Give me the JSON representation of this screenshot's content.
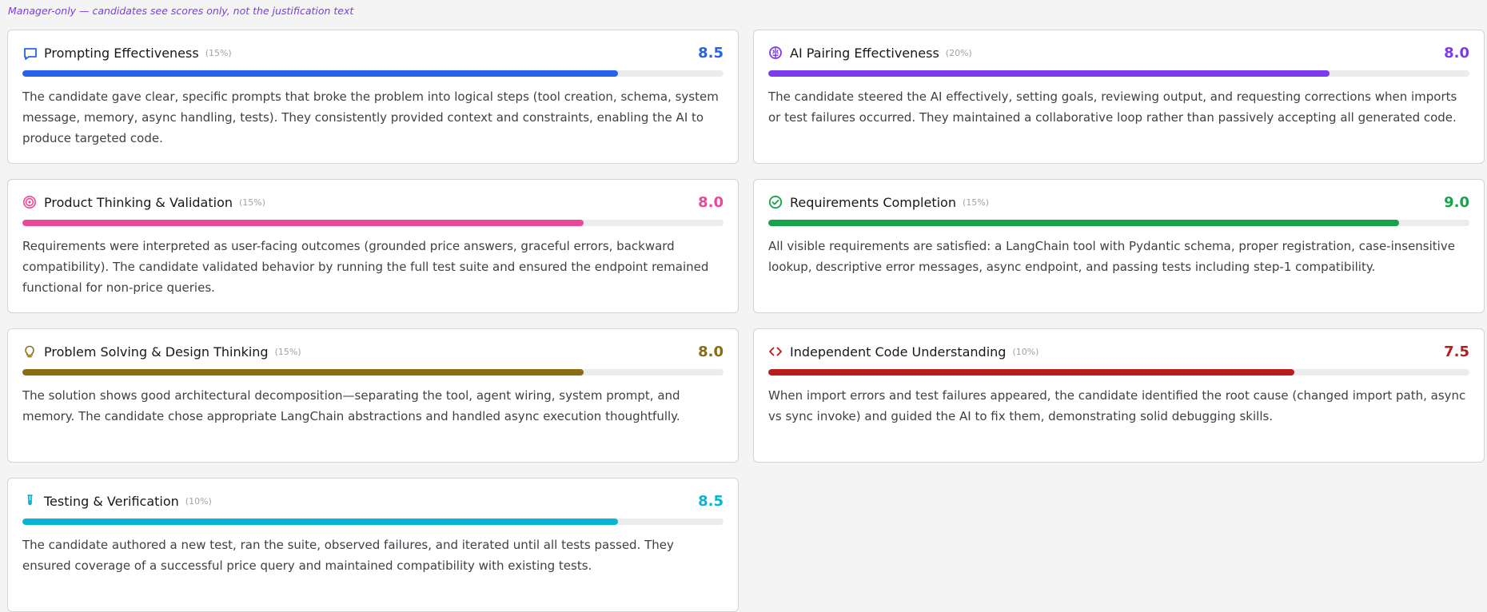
{
  "notice": "Manager-only — candidates see scores only, not the justification text",
  "cards": [
    {
      "title": "Prompting Effectiveness",
      "weight": "(15%)",
      "score": "8.5",
      "level": 0.85,
      "color": "#2563eb",
      "icon": "chat-bubble-icon",
      "text": "The candidate gave clear, specific prompts that broke the problem into logical steps (tool creation, schema, system message, memory, async handling, tests). They consistently provided context and constraints, enabling the AI to produce targeted code."
    },
    {
      "title": "AI Pairing Effectiveness",
      "weight": "(20%)",
      "score": "8.0",
      "level": 0.8,
      "color": "#7c3aed",
      "icon": "brain-icon",
      "text": "The candidate steered the AI effectively, setting goals, reviewing output, and requesting corrections when imports or test failures occurred. They maintained a collaborative loop rather than passively accepting all generated code."
    },
    {
      "title": "Product Thinking & Validation",
      "weight": "(15%)",
      "score": "8.0",
      "level": 0.8,
      "color": "#ec4899",
      "icon": "target-icon",
      "text": "Requirements were interpreted as user-facing outcomes (grounded price answers, graceful errors, backward compatibility). The candidate validated behavior by running the full test suite and ensured the endpoint remained functional for non-price queries."
    },
    {
      "title": "Requirements Completion",
      "weight": "(15%)",
      "score": "9.0",
      "level": 0.9,
      "color": "#16a34a",
      "icon": "check-circle-icon",
      "text": "All visible requirements are satisfied: a LangChain tool with Pydantic schema, proper registration, case-insensitive lookup, descriptive error messages, async endpoint, and passing tests including step-1 compatibility."
    },
    {
      "title": "Problem Solving & Design Thinking",
      "weight": "(15%)",
      "score": "8.0",
      "level": 0.8,
      "color": "#8a6d12",
      "icon": "lightbulb-icon",
      "text": "The solution shows good architectural decomposition—separating the tool, agent wiring, system prompt, and memory. The candidate chose appropriate LangChain abstractions and handled async execution thoughtfully."
    },
    {
      "title": "Independent Code Understanding",
      "weight": "(10%)",
      "score": "7.5",
      "level": 0.75,
      "color": "#b91c1c",
      "icon": "code-icon",
      "text": "When import errors and test failures appeared, the candidate identified the root cause (changed import path, async vs sync invoke) and guided the AI to fix them, demonstrating solid debugging skills."
    },
    {
      "title": "Testing & Verification",
      "weight": "(10%)",
      "score": "8.5",
      "level": 0.85,
      "color": "#06b6d4",
      "icon": "test-tube-icon",
      "text": "The candidate authored a new test, ran the suite, observed failures, and iterated until all tests passed. They ensured coverage of a successful price query and maintained compatibility with existing tests."
    }
  ]
}
